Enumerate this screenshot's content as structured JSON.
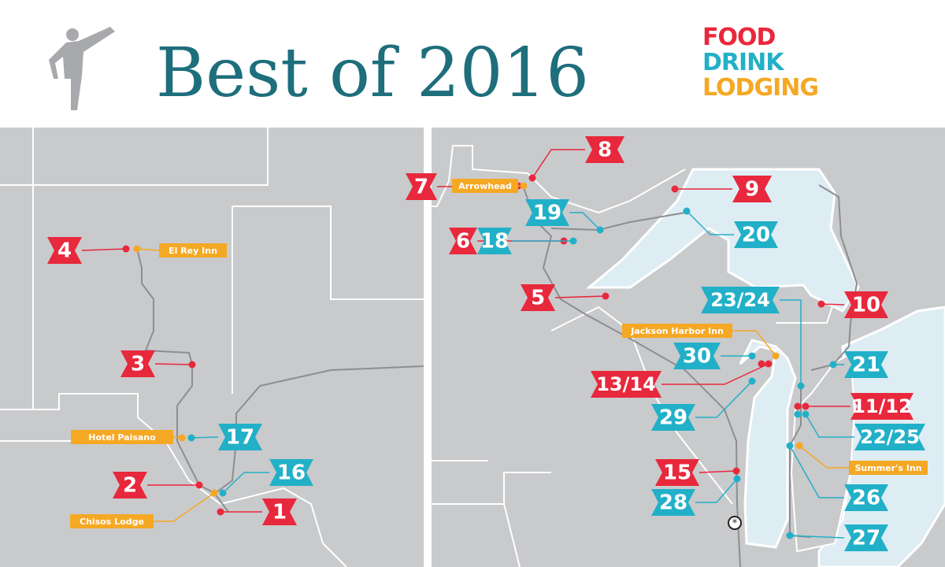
{
  "header": {
    "title": "Best of 2016",
    "legend": [
      {
        "label": "FOOD",
        "color": "#e8283c"
      },
      {
        "label": "DRINK",
        "color": "#22b0c8"
      },
      {
        "label": "LODGING",
        "color": "#f5a823"
      }
    ]
  },
  "markers": [
    {
      "label": "8",
      "color": "#e8283c"
    },
    {
      "label": "7",
      "color": "#e8283c"
    },
    {
      "label": "9",
      "color": "#e8283c"
    },
    {
      "label": "6",
      "color": "#e8283c"
    },
    {
      "label": "18",
      "color": "#22b0c8"
    },
    {
      "label": "4",
      "color": "#e8283c"
    },
    {
      "label": "5",
      "color": "#e8283c"
    },
    {
      "label": "10",
      "color": "#e8283c"
    },
    {
      "label": "3",
      "color": "#e8283c"
    },
    {
      "label": "13/14",
      "color": "#e8283c"
    },
    {
      "label": "11/12",
      "color": "#e8283c"
    },
    {
      "label": "2",
      "color": "#e8283c"
    },
    {
      "label": "15",
      "color": "#e8283c"
    },
    {
      "label": "1",
      "color": "#e8283c"
    },
    {
      "label": "19",
      "color": "#22b0c8"
    },
    {
      "label": "20",
      "color": "#22b0c8"
    },
    {
      "label": "23/24",
      "color": "#22b0c8"
    },
    {
      "label": "30",
      "color": "#22b0c8"
    },
    {
      "label": "21",
      "color": "#22b0c8"
    },
    {
      "label": "29",
      "color": "#22b0c8"
    },
    {
      "label": "22/25",
      "color": "#22b0c8"
    },
    {
      "label": "17",
      "color": "#22b0c8"
    },
    {
      "label": "16",
      "color": "#22b0c8"
    },
    {
      "label": "28",
      "color": "#22b0c8"
    },
    {
      "label": "26",
      "color": "#22b0c8"
    },
    {
      "label": "27",
      "color": "#22b0c8"
    }
  ],
  "lodging": [
    {
      "label": "Arrowhead",
      "color": "#f5a823"
    },
    {
      "label": "El Rey Inn",
      "color": "#f5a823"
    },
    {
      "label": "Hotel Paisano",
      "color": "#f5a823"
    },
    {
      "label": "Chisos Lodge",
      "color": "#f5a823"
    },
    {
      "label": "Jackson Harbor Inn",
      "color": "#f5a823"
    },
    {
      "label": "Summer's Inn",
      "color": "#f5a823"
    }
  ]
}
